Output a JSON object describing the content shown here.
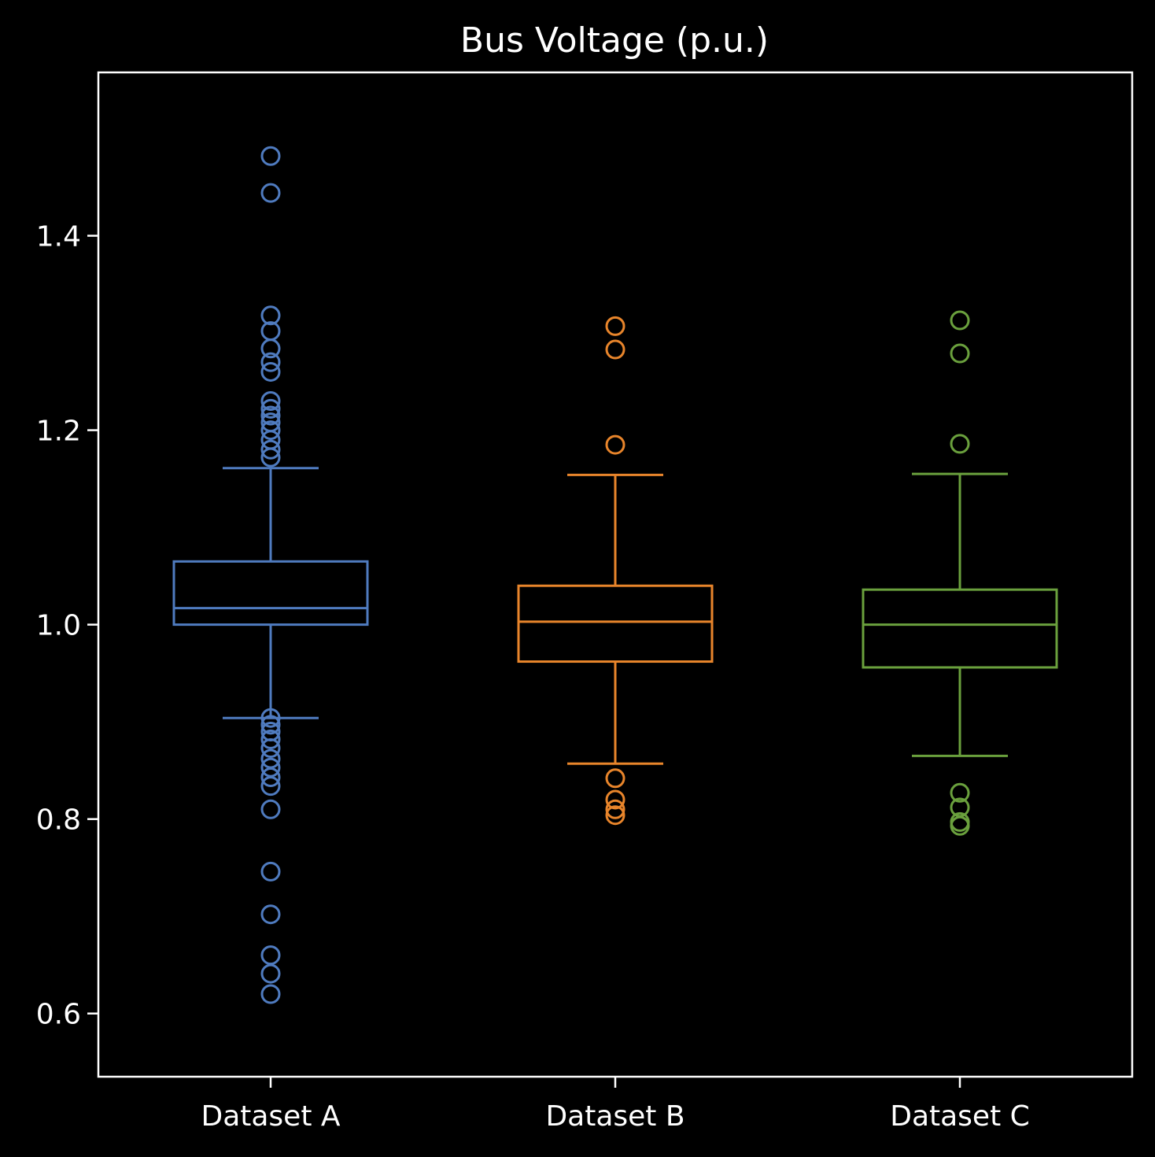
{
  "chart_data": {
    "type": "box",
    "title": "Bus Voltage (p.u.)",
    "xlabel": "",
    "ylabel": "",
    "ylim": [
      0.535,
      1.568
    ],
    "yticks": [
      0.6,
      0.8,
      1.0,
      1.2,
      1.4
    ],
    "ytick_labels": [
      "0.6",
      "0.8",
      "1.0",
      "1.2",
      "1.4"
    ],
    "grid": false,
    "legend": "none",
    "categories": [
      "Dataset A",
      "Dataset B",
      "Dataset C"
    ],
    "series": [
      {
        "category": "Dataset A",
        "color": "#4f7bbf",
        "whisker_low": 0.904,
        "q1": 1.0,
        "median": 1.017,
        "q3": 1.065,
        "whisker_high": 1.161,
        "outliers": [
          1.482,
          1.444,
          1.318,
          1.302,
          1.284,
          1.27,
          1.26,
          1.23,
          1.222,
          1.215,
          1.208,
          1.2,
          1.19,
          1.18,
          1.172,
          0.904,
          0.897,
          0.89,
          0.882,
          0.873,
          0.862,
          0.853,
          0.843,
          0.834,
          0.81,
          0.746,
          0.702,
          0.66,
          0.641,
          0.62
        ]
      },
      {
        "category": "Dataset B",
        "color": "#e8852b",
        "whisker_low": 0.857,
        "q1": 0.962,
        "median": 1.003,
        "q3": 1.04,
        "whisker_high": 1.154,
        "outliers": [
          1.307,
          1.283,
          1.185,
          0.842,
          0.82,
          0.81,
          0.804
        ]
      },
      {
        "category": "Dataset C",
        "color": "#6aa03d",
        "whisker_low": 0.865,
        "q1": 0.956,
        "median": 1.0,
        "q3": 1.036,
        "whisker_high": 1.155,
        "outliers": [
          1.313,
          1.279,
          1.186,
          0.827,
          0.812,
          0.797,
          0.793
        ]
      }
    ]
  }
}
